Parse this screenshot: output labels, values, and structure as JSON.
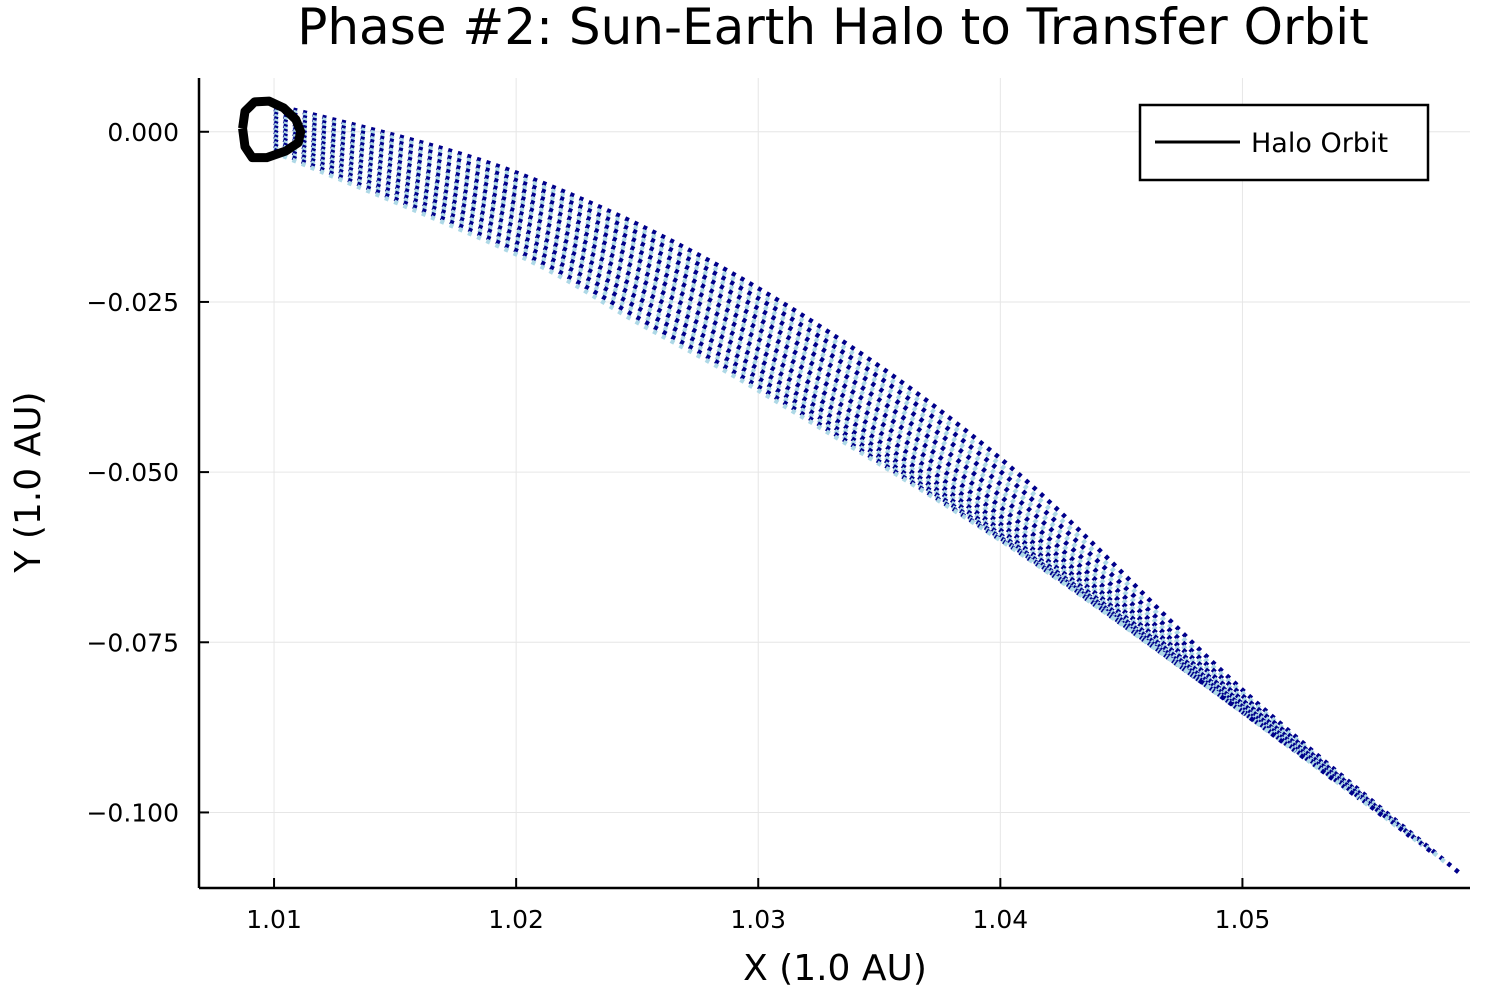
{
  "chart_data": {
    "type": "line",
    "title": "Phase #2: Sun-Earth Halo to Transfer Orbit",
    "xlabel": "X (1.0 AU)",
    "ylabel": "Y (1.0 AU)",
    "xlim": [
      1.0069,
      1.0594
    ],
    "ylim": [
      -0.1111,
      0.0079
    ],
    "xticks": [
      1.01,
      1.02,
      1.03,
      1.04,
      1.05
    ],
    "xtick_labels": [
      "1.01",
      "1.02",
      "1.03",
      "1.04",
      "1.05"
    ],
    "yticks": [
      0.0,
      -0.025,
      -0.05,
      -0.075,
      -0.1
    ],
    "ytick_labels": [
      "0.000",
      "−0.025",
      "−0.050",
      "−0.075",
      "−0.100"
    ],
    "grid": true,
    "legend": {
      "position": "top-right",
      "entries": [
        {
          "name": "Halo Orbit",
          "color": "#000000"
        }
      ]
    },
    "halo_orbit": {
      "name": "Halo Orbit",
      "color": "#000000",
      "x": [
        1.0087,
        1.0088,
        1.0092,
        1.0098,
        1.0104,
        1.0109,
        1.0111,
        1.011,
        1.0105,
        1.0097,
        1.0091,
        1.0088,
        1.0087
      ],
      "y": [
        0.0005,
        0.003,
        0.0044,
        0.0045,
        0.0035,
        0.0018,
        0.0,
        -0.0016,
        -0.0028,
        -0.0038,
        -0.0038,
        -0.0022,
        0.0005
      ]
    },
    "transfer_trajectories": {
      "count": 22,
      "colors": [
        "#00008b",
        "#add8e6"
      ],
      "style": "dotted",
      "start_x": 1.01,
      "outer_boundary": {
        "x": [
          1.01,
          1.02,
          1.03,
          1.04,
          1.05,
          1.059
        ],
        "y": [
          0.004,
          -0.006,
          -0.023,
          -0.048,
          -0.082,
          -0.109
        ]
      },
      "inner_boundary": {
        "x": [
          1.01,
          1.02,
          1.025,
          1.03,
          1.04,
          1.048
        ],
        "y": [
          -0.003,
          -0.018,
          -0.028,
          -0.038,
          -0.06,
          -0.08
        ]
      }
    }
  }
}
